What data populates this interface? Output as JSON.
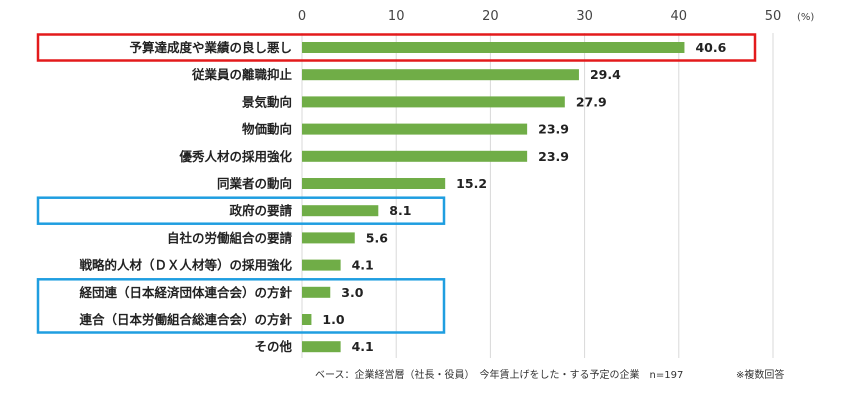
{
  "chart_data": {
    "type": "bar",
    "orientation": "horizontal",
    "categories": [
      "予算達成度や業績の良し悪し",
      "従業員の離職抑止",
      "景気動向",
      "物価動向",
      "優秀人材の採用強化",
      "同業者の動向",
      "政府の要請",
      "自社の労働組合の要請",
      "戦略的人材（ＤＸ人材等）の採用強化",
      "経団連（日本経済団体連合会）の方針",
      "連合（日本労働組合総連合会）の方針",
      "その他"
    ],
    "values": [
      40.6,
      29.4,
      27.9,
      23.9,
      23.9,
      15.2,
      8.1,
      5.6,
      4.1,
      3.0,
      1.0,
      4.1
    ],
    "value_labels": [
      "40.6",
      "29.4",
      "27.9",
      "23.9",
      "23.9",
      "15.2",
      "8.1",
      "5.6",
      "4.1",
      "3.0",
      "1.0",
      "4.1"
    ],
    "xlim": [
      0,
      50
    ],
    "ticks": [
      "0",
      "10",
      "20",
      "30",
      "40",
      "50"
    ],
    "unit_label": "(%)",
    "grid": true,
    "bar_color": "#70ad47",
    "grid_color": "#d9d9d9",
    "highlight_groups": [
      {
        "color": "#e31a1c",
        "items": [
          0
        ]
      },
      {
        "color": "#1f9ee0",
        "items": [
          6
        ]
      },
      {
        "color": "#1f9ee0",
        "items": [
          9,
          10
        ]
      }
    ]
  },
  "footnote": {
    "base": "ベース：企業経営層（社長・役員）　今年賃上げをした・する予定の企業　n=197",
    "multi": "※複数回答"
  }
}
